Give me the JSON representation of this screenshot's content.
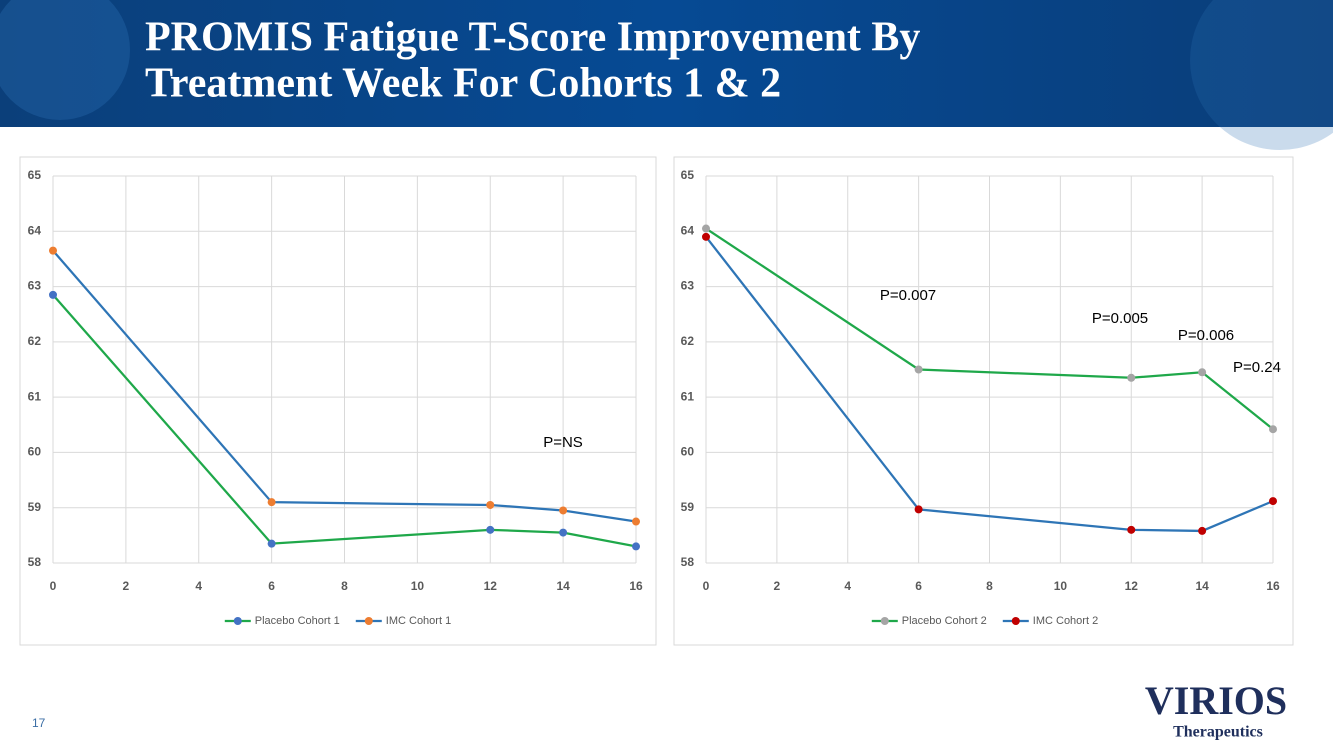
{
  "header": {
    "title": [
      "PROMIS Fatigue T-Score Improvement By",
      "Treatment Week For Cohorts 1 & 2"
    ]
  },
  "chart_data": [
    {
      "type": "line",
      "x": [
        0,
        6,
        12,
        14,
        16
      ],
      "xlim": [
        0,
        16
      ],
      "xticks": [
        0,
        2,
        4,
        6,
        8,
        10,
        12,
        14,
        16
      ],
      "ylim": [
        58,
        65
      ],
      "yticks": [
        58,
        59,
        60,
        61,
        62,
        63,
        64,
        65
      ],
      "grid": true,
      "legend": "bottom",
      "series": [
        {
          "name": "Placebo Cohort 1",
          "color": "#1fa84a",
          "marker_color": "#4472c4",
          "values": [
            62.85,
            58.35,
            58.6,
            58.55,
            58.3
          ]
        },
        {
          "name": "IMC Cohort 1",
          "color": "#2e75b6",
          "marker_color": "#ed7d31",
          "values": [
            63.65,
            59.1,
            59.05,
            58.95,
            58.75
          ]
        }
      ],
      "annotations": [
        "P=NS"
      ]
    },
    {
      "type": "line",
      "x": [
        0,
        6,
        12,
        14,
        16
      ],
      "xlim": [
        0,
        16
      ],
      "xticks": [
        0,
        2,
        4,
        6,
        8,
        10,
        12,
        14,
        16
      ],
      "ylim": [
        58,
        65
      ],
      "yticks": [
        58,
        59,
        60,
        61,
        62,
        63,
        64,
        65
      ],
      "grid": true,
      "legend": "bottom",
      "series": [
        {
          "name": "Placebo Cohort 2",
          "color": "#1fa84a",
          "marker_color": "#a5a5a5",
          "values": [
            64.05,
            61.5,
            61.35,
            61.45,
            60.42
          ]
        },
        {
          "name": "IMC Cohort 2",
          "color": "#2e75b6",
          "marker_color": "#c00000",
          "values": [
            63.9,
            58.97,
            58.6,
            58.58,
            59.12
          ]
        }
      ],
      "annotations": [
        "P=0.007",
        "P=0.005",
        "P=0.006",
        "P=0.24"
      ]
    }
  ],
  "footer": {
    "page": "17",
    "logo": "VIRIOS",
    "tagline": "Therapeutics"
  }
}
